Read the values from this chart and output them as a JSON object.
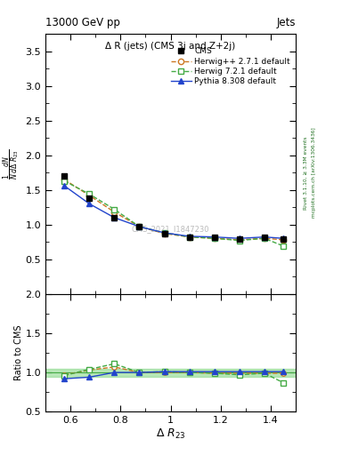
{
  "title": "13000 GeV pp",
  "title_right": "Jets",
  "plot_title": "Δ R (jets) (CMS 3j and Z+2j)",
  "ylabel_main": "1/N dN/dΔR_{23}",
  "ylabel_ratio": "Ratio to CMS",
  "watermark": "CMS_2021_I1847230",
  "right_label1": "Rivet 3.1.10, ≥ 3.3M events",
  "right_label2": "mcplots.cern.ch [arXiv:1306.3436]",
  "xlim": [
    0.5,
    1.5
  ],
  "ylim_main": [
    0.0,
    3.75
  ],
  "ylim_ratio": [
    0.5,
    2.0
  ],
  "yticks_main": [
    0.5,
    1.0,
    1.5,
    2.0,
    2.5,
    3.0,
    3.5
  ],
  "yticks_ratio": [
    0.5,
    1.0,
    1.5,
    2.0
  ],
  "xticks": [
    0.6,
    0.8,
    1.0,
    1.2,
    1.4
  ],
  "xtick_labels": [
    "0.6",
    "0.8",
    "1",
    "1.2",
    "1.4"
  ],
  "x_cms": [
    0.575,
    0.675,
    0.775,
    0.875,
    0.975,
    1.075,
    1.175,
    1.275,
    1.375,
    1.45
  ],
  "y_cms": [
    1.7,
    1.38,
    1.1,
    0.97,
    0.87,
    0.82,
    0.81,
    0.79,
    0.81,
    0.79
  ],
  "x_herwig1": [
    0.575,
    0.675,
    0.775,
    0.875,
    0.975,
    1.075,
    1.175,
    1.275,
    1.375,
    1.45
  ],
  "y_herwig1": [
    1.65,
    1.42,
    1.18,
    0.97,
    0.87,
    0.82,
    0.8,
    0.78,
    0.8,
    0.78
  ],
  "x_herwig2": [
    0.575,
    0.675,
    0.775,
    0.875,
    0.975,
    1.075,
    1.175,
    1.275,
    1.375,
    1.45
  ],
  "y_herwig2": [
    1.63,
    1.44,
    1.22,
    0.97,
    0.88,
    0.82,
    0.8,
    0.77,
    0.8,
    0.69
  ],
  "x_pythia": [
    0.575,
    0.675,
    0.775,
    0.875,
    0.975,
    1.075,
    1.175,
    1.275,
    1.375,
    1.45
  ],
  "y_pythia": [
    1.56,
    1.3,
    1.1,
    0.97,
    0.88,
    0.83,
    0.82,
    0.8,
    0.82,
    0.8
  ],
  "r_herwig1": [
    0.97,
    1.03,
    1.07,
    1.0,
    1.0,
    1.0,
    0.99,
    0.99,
    0.99,
    0.99
  ],
  "r_herwig2": [
    0.96,
    1.04,
    1.11,
    1.0,
    1.01,
    1.0,
    0.99,
    0.97,
    0.99,
    0.87
  ],
  "r_pythia": [
    0.92,
    0.94,
    1.0,
    1.0,
    1.01,
    1.01,
    1.01,
    1.01,
    1.01,
    1.01
  ],
  "color_cms": "#000000",
  "color_herwig1": "#cc7722",
  "color_herwig2": "#44aa44",
  "color_pythia": "#2244cc",
  "band_color": "#99dd99",
  "legend_labels": [
    "CMS",
    "Herwig++ 2.7.1 default",
    "Herwig 7.2.1 default",
    "Pythia 8.308 default"
  ]
}
